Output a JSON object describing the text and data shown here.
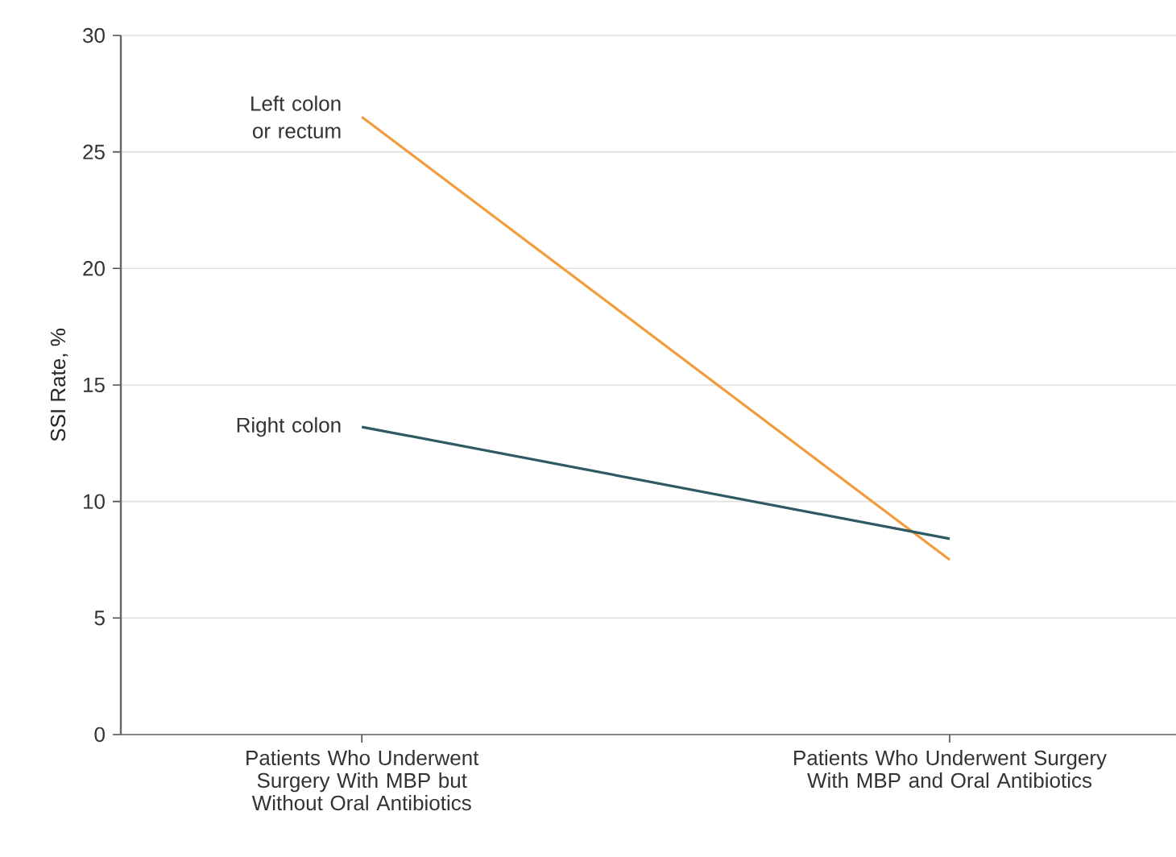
{
  "chart_data": {
    "type": "line",
    "ylabel": "SSI Rate, %",
    "categories": [
      "Patients Who Underwent Surgery With MBP but Without Oral Antibiotics",
      "Patients Who Underwent Surgery With MBP and Oral Antibiotics"
    ],
    "series": [
      {
        "name": "Left colon or rectum",
        "color": "#f39c3d",
        "values": [
          26.5,
          7.5
        ]
      },
      {
        "name": "Right colon",
        "color": "#2f5a63",
        "values": [
          13.2,
          8.4
        ]
      }
    ],
    "ylim": [
      0,
      30
    ],
    "yticks": [
      0,
      5,
      10,
      15,
      20,
      25,
      30
    ],
    "grid": "y",
    "legend": false
  }
}
